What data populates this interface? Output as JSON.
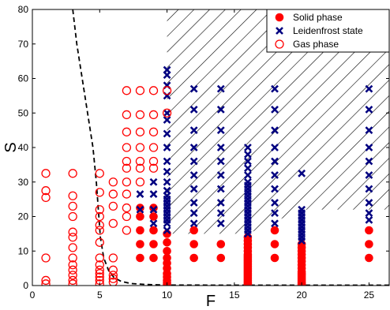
{
  "chart_data": {
    "type": "scatter",
    "title": "",
    "xlabel": "F",
    "ylabel": "S",
    "xlim": [
      0,
      26.5
    ],
    "ylim": [
      0,
      80
    ],
    "xticks": [
      0,
      5,
      10,
      15,
      20,
      25
    ],
    "yticks": [
      0,
      10,
      20,
      30,
      40,
      50,
      60,
      70,
      80
    ],
    "grid": false,
    "legend_position": "top-right",
    "colors": {
      "solid": "#ff0000",
      "leidenfrost": "#000080",
      "gas": "#ff0000",
      "boundary": "#000000"
    },
    "series": [
      {
        "name": "Solid phase",
        "marker": "filled-circle",
        "points": [
          [
            8,
            8
          ],
          [
            8,
            12
          ],
          [
            8,
            16
          ],
          [
            8,
            20
          ],
          [
            8,
            22.5
          ],
          [
            9,
            8
          ],
          [
            9,
            12
          ],
          [
            9,
            16
          ],
          [
            9,
            20
          ],
          [
            9,
            22.5
          ],
          [
            10,
            0.3
          ],
          [
            10,
            0.8
          ],
          [
            10,
            1.5
          ],
          [
            10,
            2.5
          ],
          [
            10,
            3.5
          ],
          [
            10,
            5
          ],
          [
            10,
            6.5
          ],
          [
            10,
            8
          ],
          [
            10,
            10
          ],
          [
            10,
            12.5
          ],
          [
            10,
            15
          ],
          [
            12,
            8
          ],
          [
            12,
            12
          ],
          [
            12,
            16
          ],
          [
            14,
            8
          ],
          [
            14,
            12
          ],
          [
            16,
            0.2
          ],
          [
            16,
            0.6
          ],
          [
            16,
            1
          ],
          [
            16,
            1.5
          ],
          [
            16,
            2
          ],
          [
            16,
            2.5
          ],
          [
            16,
            3
          ],
          [
            16,
            3.5
          ],
          [
            16,
            4
          ],
          [
            16,
            4.5
          ],
          [
            16,
            5
          ],
          [
            16,
            5.5
          ],
          [
            16,
            6
          ],
          [
            16,
            6.5
          ],
          [
            16,
            7
          ],
          [
            16,
            7.5
          ],
          [
            16,
            8
          ],
          [
            16,
            8.5
          ],
          [
            16,
            9
          ],
          [
            16,
            10
          ],
          [
            16,
            11
          ],
          [
            16,
            12
          ],
          [
            16,
            13
          ],
          [
            16,
            14
          ],
          [
            18,
            8
          ],
          [
            18,
            12
          ],
          [
            18,
            16
          ],
          [
            20,
            0.2
          ],
          [
            20,
            0.6
          ],
          [
            20,
            1
          ],
          [
            20,
            1.5
          ],
          [
            20,
            2
          ],
          [
            20,
            2.5
          ],
          [
            20,
            3
          ],
          [
            20,
            3.5
          ],
          [
            20,
            4
          ],
          [
            20,
            5
          ],
          [
            20,
            6
          ],
          [
            20,
            7
          ],
          [
            20,
            8
          ],
          [
            20,
            9
          ],
          [
            20,
            10
          ],
          [
            20,
            11
          ],
          [
            20,
            12
          ],
          [
            25,
            8
          ],
          [
            25,
            12
          ],
          [
            25,
            16
          ]
        ]
      },
      {
        "name": "Leidenfrost state",
        "marker": "x",
        "points": [
          [
            8,
            22
          ],
          [
            8,
            26.5
          ],
          [
            9,
            18
          ],
          [
            9,
            22
          ],
          [
            9,
            26.5
          ],
          [
            9,
            30
          ],
          [
            10,
            16
          ],
          [
            10,
            18
          ],
          [
            10,
            19
          ],
          [
            10,
            20
          ],
          [
            10,
            21
          ],
          [
            10,
            22
          ],
          [
            10,
            23
          ],
          [
            10,
            24
          ],
          [
            10,
            25
          ],
          [
            10,
            26
          ],
          [
            10,
            27.5
          ],
          [
            10,
            30
          ],
          [
            10,
            33
          ],
          [
            10,
            36
          ],
          [
            10,
            40
          ],
          [
            10,
            44
          ],
          [
            10,
            48
          ],
          [
            10,
            50
          ],
          [
            10,
            55
          ],
          [
            10,
            58
          ],
          [
            10,
            61
          ],
          [
            10,
            62.5
          ],
          [
            12,
            18
          ],
          [
            12,
            21
          ],
          [
            12,
            24
          ],
          [
            12,
            28
          ],
          [
            12,
            32
          ],
          [
            12,
            36
          ],
          [
            12,
            40
          ],
          [
            12,
            45
          ],
          [
            12,
            51
          ],
          [
            12,
            57
          ],
          [
            14,
            18
          ],
          [
            14,
            21
          ],
          [
            14,
            24
          ],
          [
            14,
            28
          ],
          [
            14,
            32
          ],
          [
            14,
            36
          ],
          [
            14,
            40
          ],
          [
            14,
            45
          ],
          [
            14,
            51
          ],
          [
            14,
            57
          ],
          [
            16,
            15
          ],
          [
            16,
            16
          ],
          [
            16,
            17
          ],
          [
            16,
            18
          ],
          [
            16,
            19
          ],
          [
            16,
            20
          ],
          [
            16,
            21
          ],
          [
            16,
            22
          ],
          [
            16,
            23
          ],
          [
            16,
            24
          ],
          [
            16,
            25
          ],
          [
            16,
            26
          ],
          [
            16,
            27
          ],
          [
            16,
            28
          ],
          [
            16,
            29
          ],
          [
            16,
            30
          ],
          [
            16,
            32
          ],
          [
            16,
            34
          ],
          [
            16,
            36
          ],
          [
            16,
            38
          ],
          [
            16,
            40
          ],
          [
            18,
            18
          ],
          [
            18,
            21
          ],
          [
            18,
            24
          ],
          [
            18,
            28
          ],
          [
            18,
            32
          ],
          [
            18,
            36
          ],
          [
            18,
            40
          ],
          [
            18,
            45
          ],
          [
            18,
            51
          ],
          [
            18,
            57
          ],
          [
            20,
            13
          ],
          [
            20,
            14
          ],
          [
            20,
            15
          ],
          [
            20,
            16
          ],
          [
            20,
            17
          ],
          [
            20,
            18
          ],
          [
            20,
            19
          ],
          [
            20,
            20
          ],
          [
            20,
            21
          ],
          [
            20,
            22
          ],
          [
            20,
            32.5
          ],
          [
            25,
            19
          ],
          [
            25,
            21
          ],
          [
            25,
            24
          ],
          [
            25,
            28
          ],
          [
            25,
            32
          ],
          [
            25,
            36
          ],
          [
            25,
            40
          ],
          [
            25,
            45
          ],
          [
            25,
            51
          ],
          [
            25,
            57
          ]
        ]
      },
      {
        "name": "Gas phase",
        "marker": "open-circle",
        "points": [
          [
            1,
            0.5
          ],
          [
            1,
            1.5
          ],
          [
            1,
            8
          ],
          [
            1,
            25.5
          ],
          [
            1,
            27.5
          ],
          [
            1,
            32.5
          ],
          [
            3,
            0.5
          ],
          [
            3,
            1.5
          ],
          [
            3,
            3
          ],
          [
            3,
            4.5
          ],
          [
            3,
            6
          ],
          [
            3,
            8
          ],
          [
            3,
            11
          ],
          [
            3,
            14
          ],
          [
            3,
            15.5
          ],
          [
            3,
            20
          ],
          [
            3,
            23
          ],
          [
            3,
            26
          ],
          [
            3,
            32.5
          ],
          [
            5,
            0.5
          ],
          [
            5,
            1.5
          ],
          [
            5,
            2.5
          ],
          [
            5,
            3.5
          ],
          [
            5,
            4.5
          ],
          [
            5,
            6
          ],
          [
            5,
            8
          ],
          [
            5,
            12.5
          ],
          [
            5,
            16
          ],
          [
            5,
            17.5
          ],
          [
            5,
            20
          ],
          [
            5,
            22
          ],
          [
            5,
            27
          ],
          [
            5,
            32.5
          ],
          [
            6,
            1
          ],
          [
            6,
            2
          ],
          [
            6,
            3
          ],
          [
            6,
            4.5
          ],
          [
            6,
            8
          ],
          [
            6,
            18
          ],
          [
            6,
            23
          ],
          [
            6,
            26.5
          ],
          [
            6,
            30
          ],
          [
            7,
            16
          ],
          [
            7,
            20
          ],
          [
            7,
            22.5
          ],
          [
            7,
            26.5
          ],
          [
            7,
            30
          ],
          [
            7,
            34
          ],
          [
            7,
            36
          ],
          [
            7,
            40
          ],
          [
            7,
            44.5
          ],
          [
            7,
            49.5
          ],
          [
            7,
            56.5
          ],
          [
            8,
            30
          ],
          [
            8,
            34
          ],
          [
            8,
            36
          ],
          [
            8,
            40
          ],
          [
            8,
            44.5
          ],
          [
            8,
            49.5
          ],
          [
            8,
            56.5
          ],
          [
            9,
            34
          ],
          [
            9,
            36
          ],
          [
            9,
            40
          ],
          [
            9,
            44.5
          ],
          [
            9,
            49.5
          ],
          [
            9,
            56.5
          ],
          [
            10,
            50
          ],
          [
            10,
            56.5
          ]
        ]
      }
    ],
    "hatched_region": [
      [
        10,
        0
      ],
      [
        10,
        80
      ],
      [
        26.5,
        80
      ],
      [
        26.5,
        22
      ],
      [
        20,
        22
      ],
      [
        16,
        15
      ],
      [
        10,
        15
      ]
    ],
    "boundary_line": [
      [
        3,
        80
      ],
      [
        3.3,
        70
      ],
      [
        3.7,
        60
      ],
      [
        4.1,
        50
      ],
      [
        4.5,
        40
      ],
      [
        4.75,
        30
      ],
      [
        4.9,
        22
      ],
      [
        5.05,
        14
      ],
      [
        5.3,
        8
      ],
      [
        5.7,
        4
      ],
      [
        6.1,
        2.2
      ],
      [
        6.6,
        1.2
      ],
      [
        7.3,
        0.6
      ],
      [
        8.5,
        0.3
      ],
      [
        10,
        0.15
      ],
      [
        15,
        0.1
      ],
      [
        26.5,
        0.1
      ]
    ]
  }
}
